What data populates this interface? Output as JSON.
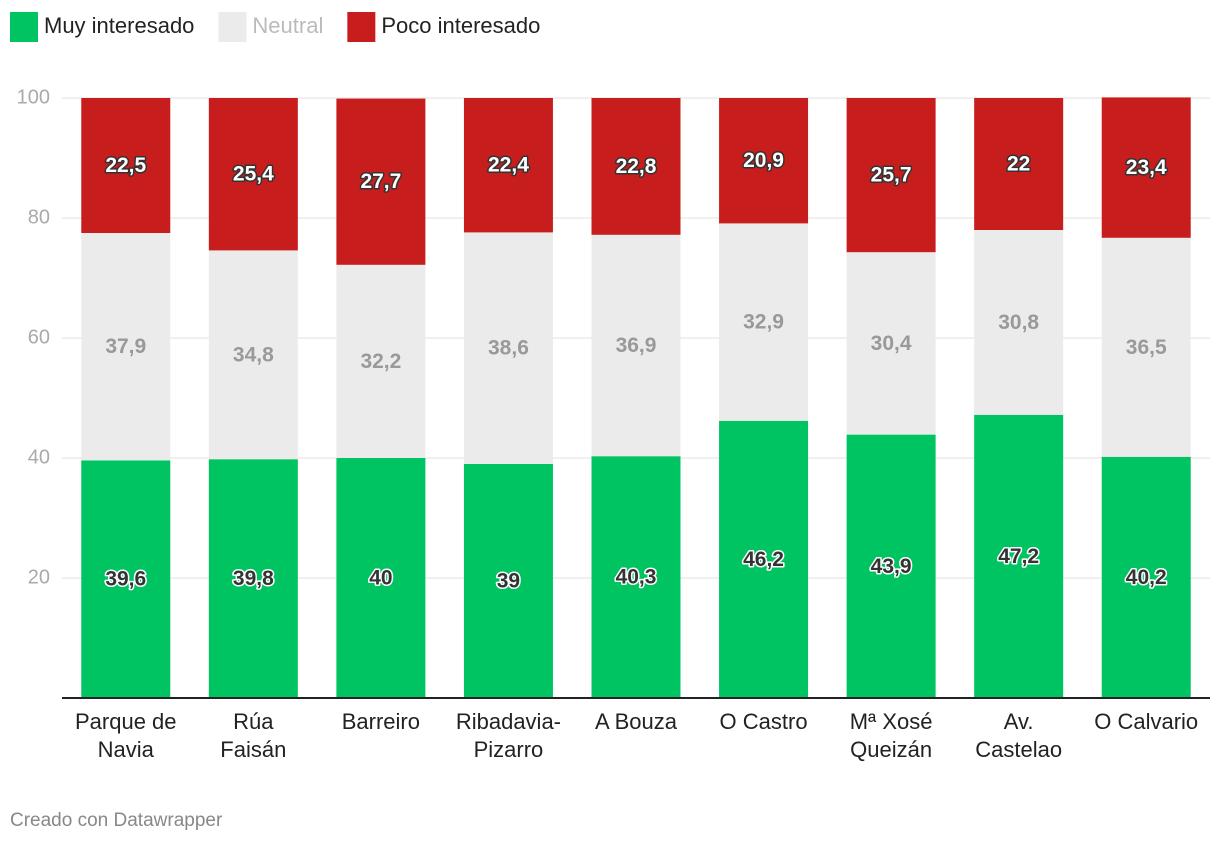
{
  "chart_data": {
    "type": "stacked_bar",
    "categories": [
      "Parque de\nNavia",
      "Rúa\nFaisán",
      "Barreiro",
      "Ribadavia-\nPizarro",
      "A Bouza",
      "O Castro",
      "Mª Xosé\nQueizán",
      "Av.\nCastelao",
      "O Calvario"
    ],
    "series": [
      {
        "name": "Muy interesado",
        "color": "#00c462",
        "values": [
          39.6,
          39.8,
          40,
          39,
          40.3,
          46.2,
          43.9,
          47.2,
          40.2
        ],
        "value_labels": [
          "39,6",
          "39,8",
          "40",
          "39",
          "40,3",
          "46,2",
          "43,9",
          "47,2",
          "40,2"
        ]
      },
      {
        "name": "Neutral",
        "color": "#ebebeb",
        "values": [
          37.9,
          34.8,
          32.2,
          38.6,
          36.9,
          32.9,
          30.4,
          30.8,
          36.5
        ],
        "value_labels": [
          "37,9",
          "34,8",
          "32,2",
          "38,6",
          "36,9",
          "32,9",
          "30,4",
          "30,8",
          "36,5"
        ]
      },
      {
        "name": "Poco interesado",
        "color": "#c71e1d",
        "values": [
          22.5,
          25.4,
          27.7,
          22.4,
          22.8,
          20.9,
          25.7,
          22,
          23.4
        ],
        "value_labels": [
          "22,5",
          "25,4",
          "27,7",
          "22,4",
          "22,8",
          "20,9",
          "25,7",
          "22",
          "23,4"
        ]
      }
    ],
    "ylim": [
      0,
      100
    ],
    "yticks": [
      20,
      40,
      60,
      80,
      100
    ],
    "grid": true,
    "legend": "top-left",
    "footer": "Creado con Datawrapper"
  }
}
